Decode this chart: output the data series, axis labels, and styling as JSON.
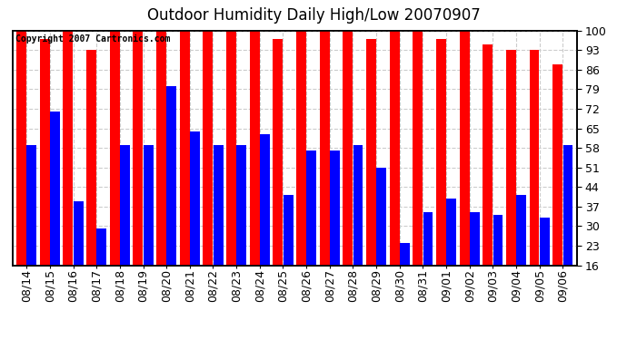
{
  "title": "Outdoor Humidity Daily High/Low 20070907",
  "copyright": "Copyright 2007 Cartronics.com",
  "dates": [
    "08/14",
    "08/15",
    "08/16",
    "08/17",
    "08/18",
    "08/19",
    "08/20",
    "08/21",
    "08/22",
    "08/23",
    "08/24",
    "08/25",
    "08/26",
    "08/27",
    "08/28",
    "08/29",
    "08/30",
    "08/31",
    "09/01",
    "09/02",
    "09/03",
    "09/04",
    "09/05",
    "09/06"
  ],
  "highs": [
    100,
    97,
    100,
    93,
    100,
    100,
    100,
    100,
    100,
    100,
    100,
    97,
    100,
    100,
    100,
    97,
    100,
    100,
    97,
    100,
    95,
    93,
    93,
    88
  ],
  "lows": [
    59,
    71,
    39,
    29,
    59,
    59,
    80,
    64,
    59,
    59,
    63,
    41,
    57,
    57,
    59,
    51,
    24,
    35,
    40,
    35,
    34,
    41,
    33,
    59
  ],
  "bar_color_high": "#ff0000",
  "bar_color_low": "#0000ff",
  "bg_color": "#ffffff",
  "plot_bg_color": "#ffffff",
  "grid_color": "#cccccc",
  "yticks": [
    16,
    23,
    30,
    37,
    44,
    51,
    58,
    65,
    72,
    79,
    86,
    93,
    100
  ],
  "ymin": 16,
  "ymax": 100,
  "title_fontsize": 12,
  "tick_fontsize": 9,
  "copyright_fontsize": 7,
  "bar_width": 0.42,
  "bar_gap": 0.02
}
